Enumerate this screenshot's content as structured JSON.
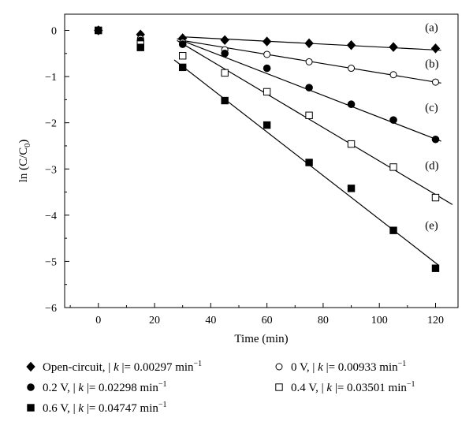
{
  "chart_data": {
    "type": "scatter",
    "xlabel": "Time (min)",
    "ylabel_prefix": "ln (C/C",
    "ylabel_sub": "0",
    "ylabel_suffix": ")",
    "xlim": [
      -12,
      128
    ],
    "ylim": [
      -6,
      0.35
    ],
    "xticks": [
      0,
      20,
      40,
      60,
      80,
      100,
      120
    ],
    "yticks": [
      0,
      -1,
      -2,
      -3,
      -4,
      -5,
      -6
    ],
    "grid": false,
    "legend_position": "bottom",
    "series": [
      {
        "id": "a",
        "curve_label": "(a)",
        "legend_prefix": "Open-circuit, | ",
        "legend_k": "k",
        "legend_value": " |= 0.00297 min",
        "legend_exp": "−1",
        "marker": "diamond",
        "x": [
          0,
          15,
          30,
          45,
          60,
          75,
          90,
          105,
          120
        ],
        "y": [
          0,
          -0.09,
          -0.17,
          -0.21,
          -0.24,
          -0.28,
          -0.32,
          -0.36,
          -0.39
        ],
        "fit": {
          "x": [
            30,
            122
          ],
          "y": [
            -0.14,
            -0.43
          ]
        }
      },
      {
        "id": "b",
        "curve_label": "(b)",
        "legend_prefix": "0 V,  | ",
        "legend_k": "k",
        "legend_value": " |= 0.00933 min",
        "legend_exp": "−1",
        "marker": "circle-open",
        "x": [
          0,
          15,
          30,
          45,
          60,
          75,
          90,
          105,
          120
        ],
        "y": [
          0,
          -0.18,
          -0.26,
          -0.42,
          -0.52,
          -0.68,
          -0.82,
          -0.96,
          -1.12
        ],
        "fit": {
          "x": [
            30,
            122
          ],
          "y": [
            -0.22,
            -1.14
          ]
        }
      },
      {
        "id": "c",
        "curve_label": "(c)",
        "legend_prefix": "0.2 V,  | ",
        "legend_k": "k",
        "legend_value": " |= 0.02298 min",
        "legend_exp": "−1",
        "marker": "circle-filled",
        "x": [
          0,
          15,
          30,
          45,
          60,
          75,
          90,
          105,
          120
        ],
        "y": [
          0,
          -0.22,
          -0.3,
          -0.5,
          -0.82,
          -1.24,
          -1.6,
          -1.94,
          -2.36
        ],
        "fit": {
          "x": [
            28,
            122
          ],
          "y": [
            -0.18,
            -2.4
          ]
        }
      },
      {
        "id": "d",
        "curve_label": "(d)",
        "legend_prefix": "0.4 V,  | ",
        "legend_k": "k",
        "legend_value": " |= 0.03501 min",
        "legend_exp": "−1",
        "marker": "square-open",
        "x": [
          0,
          15,
          30,
          45,
          60,
          75,
          90,
          105,
          120
        ],
        "y": [
          0,
          -0.3,
          -0.55,
          -0.92,
          -1.33,
          -1.84,
          -2.46,
          -2.96,
          -3.62
        ],
        "fit": {
          "x": [
            28,
            126
          ],
          "y": [
            -0.22,
            -3.77
          ]
        }
      },
      {
        "id": "e",
        "curve_label": "(e)",
        "legend_prefix": "0.6 V,  | ",
        "legend_k": "k",
        "legend_value": " |= 0.04747 min",
        "legend_exp": "−1",
        "marker": "square-filled",
        "x": [
          0,
          15,
          30,
          45,
          60,
          75,
          90,
          105,
          120
        ],
        "y": [
          0,
          -0.37,
          -0.8,
          -1.52,
          -2.05,
          -2.86,
          -3.42,
          -4.33,
          -5.15
        ],
        "fit": {
          "x": [
            27,
            121
          ],
          "y": [
            -0.64,
            -5.08
          ]
        }
      }
    ]
  }
}
